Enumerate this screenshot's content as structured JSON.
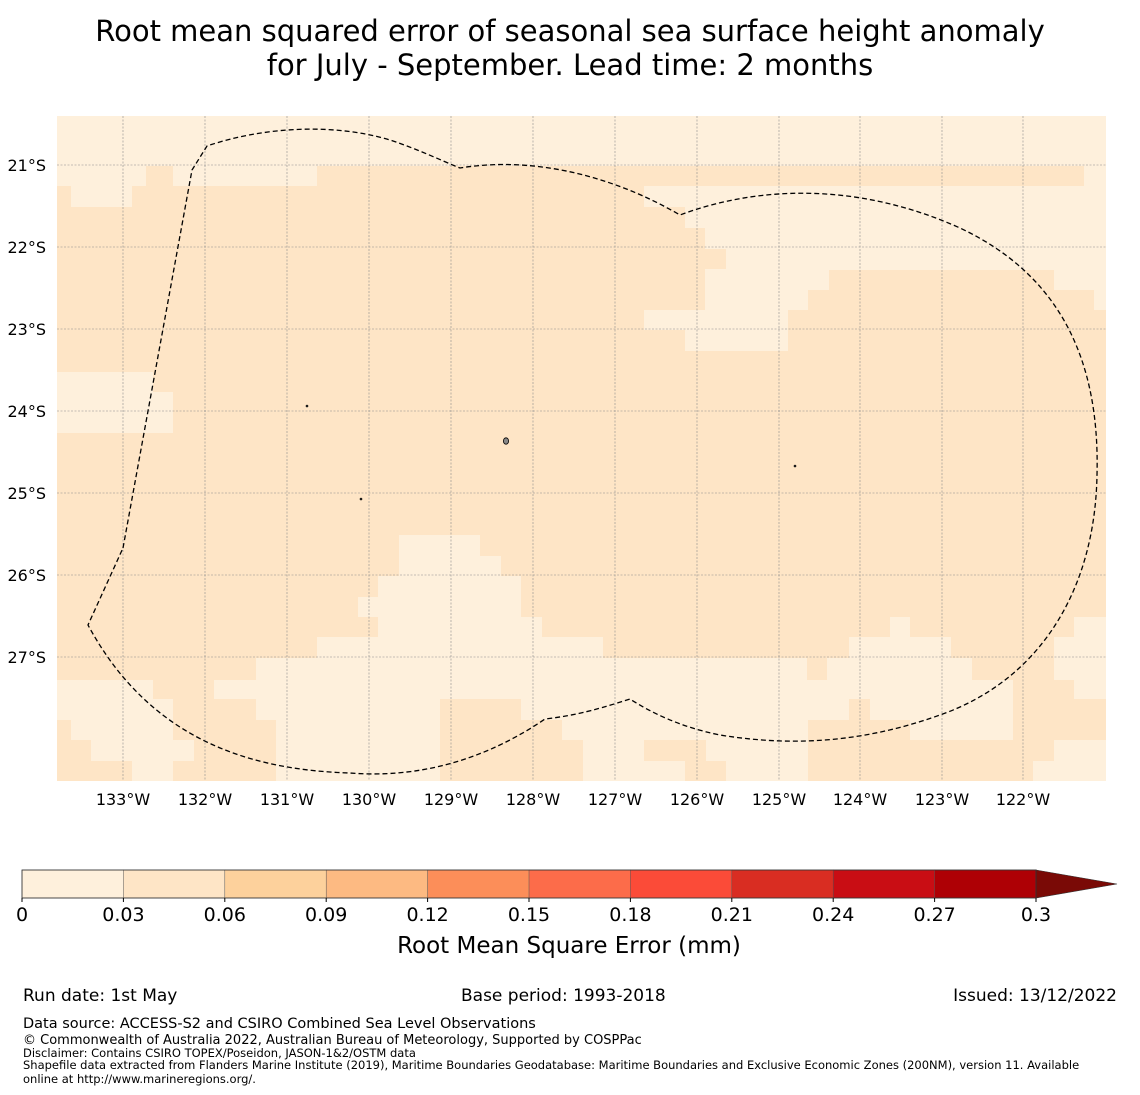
{
  "title": {
    "line1": "Root mean squared error of seasonal sea surface height anomaly",
    "line2": "for July - September. Lead time: 2 months"
  },
  "map": {
    "lon_ticks": [
      "133°W",
      "132°W",
      "131°W",
      "130°W",
      "129°W",
      "128°W",
      "127°W",
      "126°W",
      "125°W",
      "124°W",
      "123°W",
      "122°W"
    ],
    "lat_ticks": [
      "21°S",
      "22°S",
      "23°S",
      "24°S",
      "25°S",
      "26°S",
      "27°S"
    ],
    "field_colors": {
      "low": "#fef0dc",
      "mid": "#fee5c6"
    },
    "boundary_style": "dashed",
    "grid": true
  },
  "colorbar": {
    "label": "Root Mean Square Error (mm)",
    "ticks": [
      "0",
      "0.03",
      "0.06",
      "0.09",
      "0.12",
      "0.15",
      "0.18",
      "0.21",
      "0.24",
      "0.27",
      "0.3"
    ],
    "colors": [
      "#fef0dc",
      "#fee5c6",
      "#fdd19c",
      "#fdba82",
      "#fc8e59",
      "#fc6c4a",
      "#fb4b38",
      "#d92d22",
      "#c90d14",
      "#ae0005"
    ],
    "extend_color": "#7a0a06",
    "extend": "max"
  },
  "footer": {
    "run_date": "Run date: 1st May",
    "base_period": "Base period: 1993-2018",
    "issued": "Issued: 13/12/2022",
    "data_source": "Data source: ACCESS-S2 and CSIRO Combined Sea Level Observations",
    "copyright": "© Commonwealth of Australia 2022, Australian Bureau of Meteorology, Supported by COSPPac",
    "disclaimer": "Disclaimer: Contains CSIRO TOPEX/Poseidon, JASON-1&2/OSTM data",
    "shapefile_line1": "Shapefile data extracted from Flanders Marine Institute (2019), Maritime Boundaries Geodatabase: Maritime Boundaries and Exclusive Economic Zones (200NM), version 11. Available",
    "shapefile_line2": "online at http://www.marineregions.org/."
  }
}
